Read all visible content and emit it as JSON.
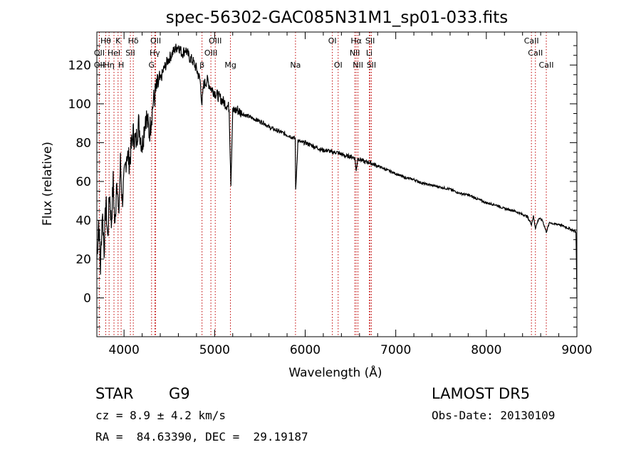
{
  "chart_data": {
    "type": "line",
    "title": "spec-56302-GAC085N31M1_sp01-033.fits",
    "xlabel": "Wavelength (Å)",
    "ylabel": "Flux (relative)",
    "xlim": [
      3700,
      9000
    ],
    "ylim": [
      -20,
      137
    ],
    "xticks": [
      4000,
      5000,
      6000,
      7000,
      8000,
      9000
    ],
    "yticks": [
      0,
      20,
      40,
      60,
      80,
      100,
      120
    ],
    "grid": false,
    "line_color": "#000000",
    "marker_color": "#c00000",
    "series": [
      {
        "x": [
          3700,
          3720,
          3740,
          3760,
          3780,
          3800,
          3820,
          3840,
          3860,
          3880,
          3900,
          3920,
          3940,
          3960,
          3980,
          4000,
          4030,
          4060,
          4100,
          4130,
          4160,
          4200,
          4240,
          4280,
          4320,
          4360,
          4400,
          4440,
          4480,
          4520,
          4560,
          4600,
          4640,
          4680,
          4720,
          4760,
          4800,
          4840,
          4861,
          4880,
          4920,
          4960,
          5000,
          5040,
          5080,
          5120,
          5160,
          5180,
          5200,
          5250,
          5300,
          5350,
          5400,
          5450,
          5500,
          5550,
          5600,
          5650,
          5700,
          5750,
          5800,
          5850,
          5890,
          5895,
          5920,
          5960,
          6000,
          6050,
          6100,
          6150,
          6200,
          6250,
          6300,
          6350,
          6400,
          6450,
          6500,
          6550,
          6563,
          6580,
          6620,
          6660,
          6700,
          6750,
          6800,
          6850,
          6900,
          6950,
          7000,
          7100,
          7200,
          7300,
          7400,
          7500,
          7600,
          7700,
          7800,
          7900,
          8000,
          8100,
          8200,
          8300,
          8400,
          8450,
          8498,
          8520,
          8542,
          8580,
          8620,
          8662,
          8700,
          8750,
          8800,
          8850,
          8900,
          8950,
          8990,
          9000
        ],
        "y": [
          20,
          40,
          15,
          45,
          25,
          50,
          30,
          55,
          38,
          60,
          35,
          65,
          40,
          70,
          50,
          60,
          75,
          70,
          85,
          80,
          90,
          78,
          95,
          85,
          100,
          108,
          112,
          118,
          122,
          125,
          128,
          130,
          126,
          128,
          124,
          122,
          118,
          112,
          100,
          110,
          112,
          108,
          106,
          104,
          102,
          100,
          98,
          60,
          96,
          97,
          95,
          94,
          93,
          92,
          91,
          90,
          88,
          87,
          86,
          85,
          84,
          83,
          82,
          55,
          81,
          80,
          80,
          79,
          78,
          77,
          76,
          76,
          75,
          75,
          74,
          73,
          73,
          72,
          65,
          72,
          71,
          70,
          70,
          69,
          68,
          67,
          66,
          65,
          64,
          62,
          61,
          59,
          58,
          57,
          56,
          54,
          53,
          51,
          49,
          48,
          46,
          45,
          43,
          42,
          38,
          42,
          36,
          41,
          40,
          34,
          39,
          38,
          38,
          37,
          36,
          35,
          34,
          0
        ]
      }
    ],
    "lines": [
      {
        "name": "Hθ",
        "x": 3798,
        "row": 0
      },
      {
        "name": "K",
        "x": 3934,
        "row": 0
      },
      {
        "name": "Hδ",
        "x": 4102,
        "row": 0
      },
      {
        "name": "OII",
        "x": 4349,
        "row": 0
      },
      {
        "name": "OIII",
        "x": 5007,
        "row": 0
      },
      {
        "name": "OI",
        "x": 6300,
        "row": 0
      },
      {
        "name": "Hα",
        "x": 6563,
        "row": 0
      },
      {
        "name": "SII",
        "x": 6717,
        "row": 0
      },
      {
        "name": "CaII",
        "x": 8498,
        "row": 0
      },
      {
        "name": "OII",
        "x": 3727,
        "row": 1
      },
      {
        "name": "HeI",
        "x": 3889,
        "row": 1
      },
      {
        "name": "SII",
        "x": 4070,
        "row": 1
      },
      {
        "name": "Hγ",
        "x": 4340,
        "row": 1
      },
      {
        "name": "OIII",
        "x": 4959,
        "row": 1
      },
      {
        "name": "NII",
        "x": 6548,
        "row": 1
      },
      {
        "name": "Li",
        "x": 6708,
        "row": 1
      },
      {
        "name": "CaII",
        "x": 8542,
        "row": 1
      },
      {
        "name": "OII",
        "x": 3727,
        "row": 2
      },
      {
        "name": "Hη",
        "x": 3835,
        "row": 2
      },
      {
        "name": "H",
        "x": 3968,
        "row": 2
      },
      {
        "name": "G",
        "x": 4304,
        "row": 2
      },
      {
        "name": "β",
        "x": 4861,
        "row": 2
      },
      {
        "name": "Mg",
        "x": 5175,
        "row": 2
      },
      {
        "name": "Na",
        "x": 5893,
        "row": 2
      },
      {
        "name": "OI",
        "x": 6364,
        "row": 2
      },
      {
        "name": "NII",
        "x": 6583,
        "row": 2
      },
      {
        "name": "SII",
        "x": 6731,
        "row": 2
      },
      {
        "name": "CaII",
        "x": 8662,
        "row": 2
      }
    ]
  },
  "info": {
    "object_class": "STAR",
    "subclass": "G9",
    "survey": "LAMOST DR5",
    "redshift": "cz = 8.9 ± 4.2 km/s",
    "obs_date": "Obs-Date: 20130109",
    "coords": "RA =  84.63390, DEC =  29.19187"
  }
}
